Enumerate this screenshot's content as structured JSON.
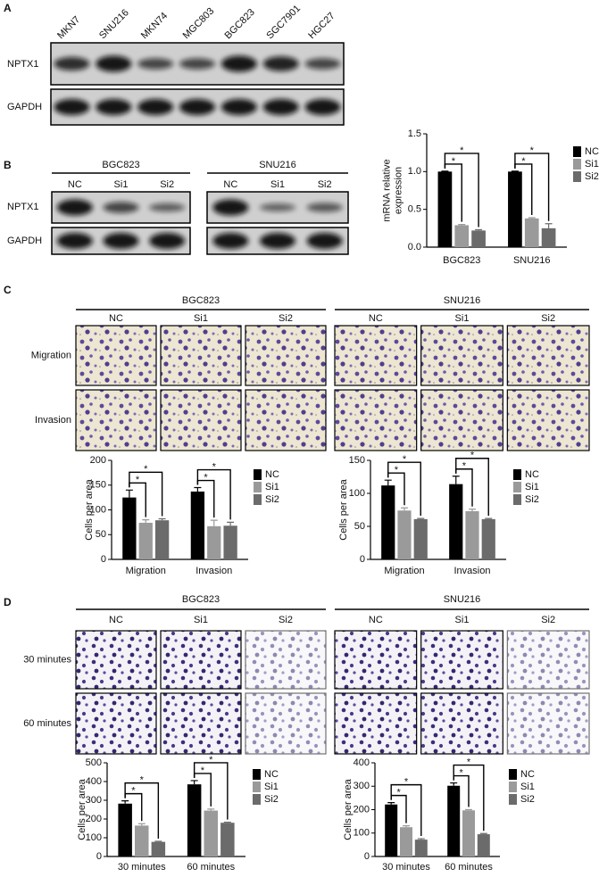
{
  "panel_labels": [
    "A",
    "B",
    "C",
    "D"
  ],
  "panel_a": {
    "lanes": [
      "MKN7",
      "SNU216",
      "MKN74",
      "MGC803",
      "BGC823",
      "SGC7901",
      "HGC27"
    ],
    "rows": [
      "NPTX1",
      "GAPDH"
    ]
  },
  "panel_b": {
    "groups": [
      {
        "name": "BGC823",
        "lanes": [
          "NC",
          "Si1",
          "Si2"
        ]
      },
      {
        "name": "SNU216",
        "lanes": [
          "NC",
          "Si1",
          "Si2"
        ]
      }
    ],
    "rows": [
      "NPTX1",
      "GAPDH"
    ]
  },
  "panel_c": {
    "groups": [
      {
        "name": "BGC823",
        "lanes": [
          "NC",
          "Si1",
          "Si2"
        ]
      },
      {
        "name": "SNU216",
        "lanes": [
          "NC",
          "Si1",
          "Si2"
        ]
      }
    ],
    "rows": [
      "Migration",
      "Invasion"
    ]
  },
  "panel_d": {
    "groups": [
      {
        "name": "BGC823",
        "lanes": [
          "NC",
          "Si1",
          "Si2"
        ]
      },
      {
        "name": "SNU216",
        "lanes": [
          "NC",
          "Si1",
          "Si2"
        ]
      }
    ],
    "rows": [
      "30 minutes",
      "60 minutes"
    ]
  },
  "chart_data": [
    {
      "type": "bar",
      "ylabel": [
        "mRNA relative",
        "expression"
      ],
      "categories": [
        "BGC823",
        "SNU216"
      ],
      "series": [
        {
          "name": "NC",
          "color": "#000000",
          "values": [
            1.0,
            1.0
          ],
          "errors": [
            0.005,
            0.005
          ]
        },
        {
          "name": "Si1",
          "color": "#9a9a9a",
          "values": [
            0.29,
            0.38
          ],
          "errors": [
            0.01,
            0.01
          ]
        },
        {
          "name": "Si2",
          "color": "#6b6b6b",
          "values": [
            0.22,
            0.25
          ],
          "errors": [
            0.01,
            0.06
          ]
        }
      ],
      "ylim": [
        0,
        1.5
      ],
      "yticks": [
        {
          "value": 0,
          "label": "0.0"
        },
        0.5,
        {
          "value": 1,
          "label": "1.0"
        },
        1.5
      ],
      "annotations": [
        "*",
        "*",
        "*",
        "*"
      ],
      "legend": "right"
    },
    {
      "type": "bar",
      "ylabel": [
        "Cells per area"
      ],
      "categories": [
        "Migration",
        "Invasion"
      ],
      "series": [
        {
          "name": "NC",
          "color": "#000000",
          "values": [
            125,
            137
          ],
          "errors": [
            15,
            8
          ]
        },
        {
          "name": "Si1",
          "color": "#9a9a9a",
          "values": [
            74,
            67
          ],
          "errors": [
            6,
            12
          ]
        },
        {
          "name": "Si2",
          "color": "#6b6b6b",
          "values": [
            79,
            68
          ],
          "errors": [
            3,
            7
          ]
        }
      ],
      "ylim": [
        0,
        200
      ],
      "yticks": [
        0,
        50,
        100,
        150,
        200
      ],
      "annotations": [
        "*",
        "*",
        "*",
        "*"
      ],
      "legend": "right"
    },
    {
      "type": "bar",
      "ylabel": [
        "Cells per area"
      ],
      "categories": [
        "Migration",
        "Invasion"
      ],
      "series": [
        {
          "name": "NC",
          "color": "#000000",
          "values": [
            112,
            114
          ],
          "errors": [
            8,
            12
          ]
        },
        {
          "name": "Si1",
          "color": "#9a9a9a",
          "values": [
            74,
            73
          ],
          "errors": [
            4,
            3
          ]
        },
        {
          "name": "Si2",
          "color": "#6b6b6b",
          "values": [
            61,
            61
          ],
          "errors": [
            1,
            1
          ]
        }
      ],
      "ylim": [
        0,
        150
      ],
      "yticks": [
        0,
        50,
        100,
        150
      ],
      "annotations": [
        "*",
        "*",
        "*",
        "*"
      ],
      "legend": "right"
    },
    {
      "type": "bar",
      "ylabel": [
        "Cells per area"
      ],
      "categories": [
        "30 minutes",
        "60 minutes"
      ],
      "series": [
        {
          "name": "NC",
          "color": "#000000",
          "values": [
            282,
            385
          ],
          "errors": [
            15,
            20
          ]
        },
        {
          "name": "Si1",
          "color": "#9a9a9a",
          "values": [
            165,
            245
          ],
          "errors": [
            10,
            8
          ]
        },
        {
          "name": "Si2",
          "color": "#6b6b6b",
          "values": [
            78,
            180
          ],
          "errors": [
            3,
            3
          ]
        }
      ],
      "ylim": [
        0,
        500
      ],
      "yticks": [
        0,
        100,
        200,
        300,
        400,
        500
      ],
      "annotations": [
        "*",
        "*",
        "*",
        "*"
      ],
      "legend": "right"
    },
    {
      "type": "bar",
      "ylabel": [
        "Cells per area"
      ],
      "categories": [
        "30 minutes",
        "60 minutes"
      ],
      "series": [
        {
          "name": "NC",
          "color": "#000000",
          "values": [
            222,
            302
          ],
          "errors": [
            8,
            12
          ]
        },
        {
          "name": "Si1",
          "color": "#9a9a9a",
          "values": [
            125,
            197
          ],
          "errors": [
            6,
            3
          ]
        },
        {
          "name": "Si2",
          "color": "#6b6b6b",
          "values": [
            72,
            95
          ],
          "errors": [
            4,
            3
          ]
        }
      ],
      "ylim": [
        0,
        400
      ],
      "yticks": [
        0,
        100,
        200,
        300,
        400
      ],
      "annotations": [
        "*",
        "*",
        "*",
        "*"
      ],
      "legend": "right"
    }
  ]
}
